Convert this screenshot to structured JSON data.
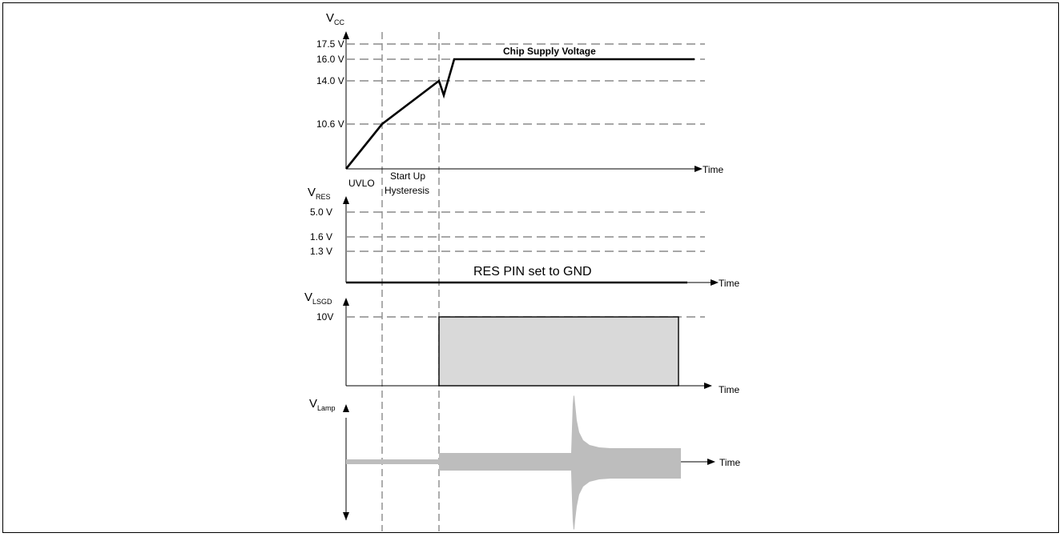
{
  "vcc": {
    "axis_label": "V",
    "axis_sub": "CC",
    "levels": [
      "17.5 V",
      "16.0 V",
      "14.0 V",
      "10.6 V"
    ],
    "trace_label": "Chip Supply  Voltage",
    "x_label": "Time"
  },
  "phases": {
    "uvlo": "UVLO",
    "startup_line1": "Start Up",
    "startup_line2": "Hysteresis"
  },
  "vres": {
    "axis_label": "V",
    "axis_sub": "RES",
    "levels": [
      "5.0 V",
      "1.6 V",
      "1.3 V"
    ],
    "trace_label": "RES PIN set to GND",
    "x_label": "Time"
  },
  "vlsgd": {
    "axis_label": "V",
    "axis_sub": "LSGD",
    "level": "10V",
    "x_label": "Time"
  },
  "vlamp": {
    "axis_label": "V",
    "axis_sub": "Lamp",
    "x_label": "Time"
  },
  "colors": {
    "trace": "#000000",
    "dashed_guide": "#8a8a8a",
    "gate_fill": "#d9d9d9",
    "lamp_fill": "#bdbdbd"
  }
}
